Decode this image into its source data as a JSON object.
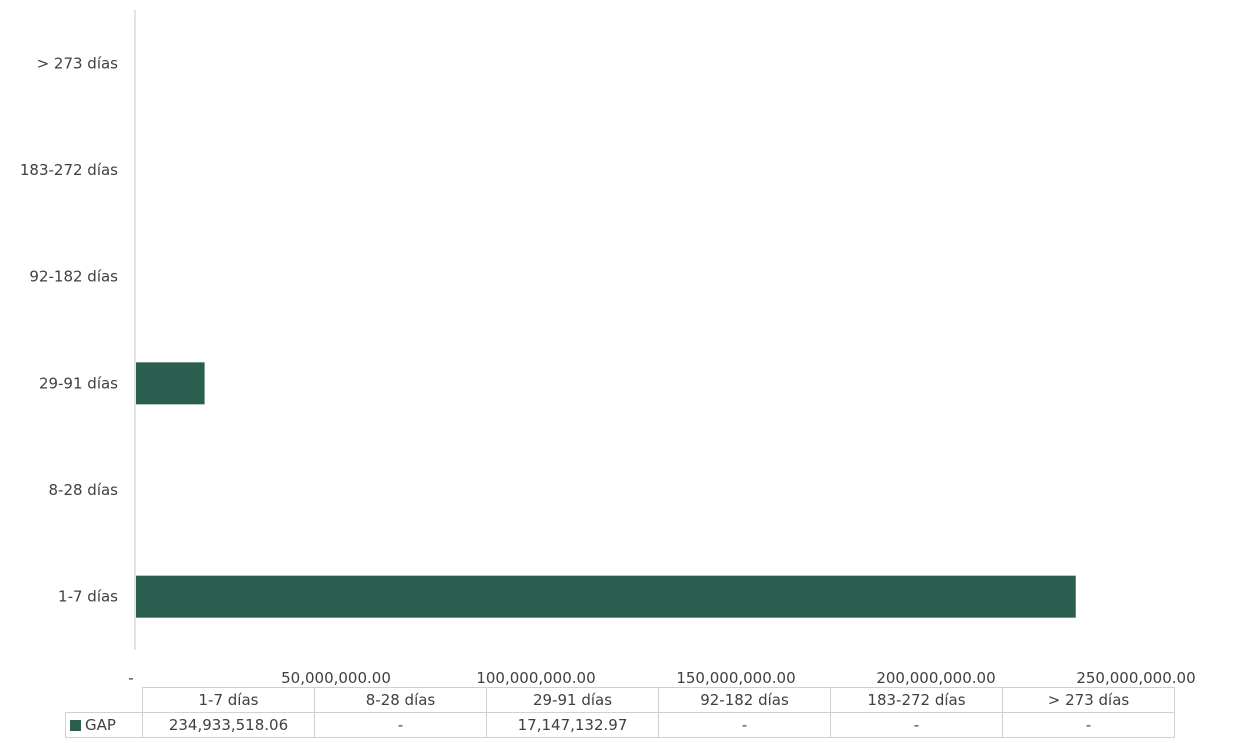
{
  "chart_data": {
    "type": "bar",
    "orientation": "horizontal",
    "categories": [
      "1-7 días",
      "8-28 días",
      "29-91 días",
      "92-182 días",
      "183-272 días",
      "> 273 días"
    ],
    "series": [
      {
        "name": "GAP",
        "color": "#2a5e4f",
        "values": [
          234933518.06,
          0,
          17147132.97,
          0,
          0,
          0
        ],
        "table_values": [
          "234,933,518.06",
          "-",
          "17,147,132.97",
          "-",
          "-",
          "-"
        ]
      }
    ],
    "xlim": [
      0,
      250000000
    ],
    "x_ticks": [
      {
        "value": 0,
        "label": "-"
      },
      {
        "value": 50000000,
        "label": "50,000,000.00"
      },
      {
        "value": 100000000,
        "label": "100,000,000.00"
      },
      {
        "value": 150000000,
        "label": "150,000,000.00"
      },
      {
        "value": 200000000,
        "label": "200,000,000.00"
      },
      {
        "value": 250000000,
        "label": "250,000,000.00"
      }
    ],
    "grid": false,
    "legend": "data table below chart"
  }
}
